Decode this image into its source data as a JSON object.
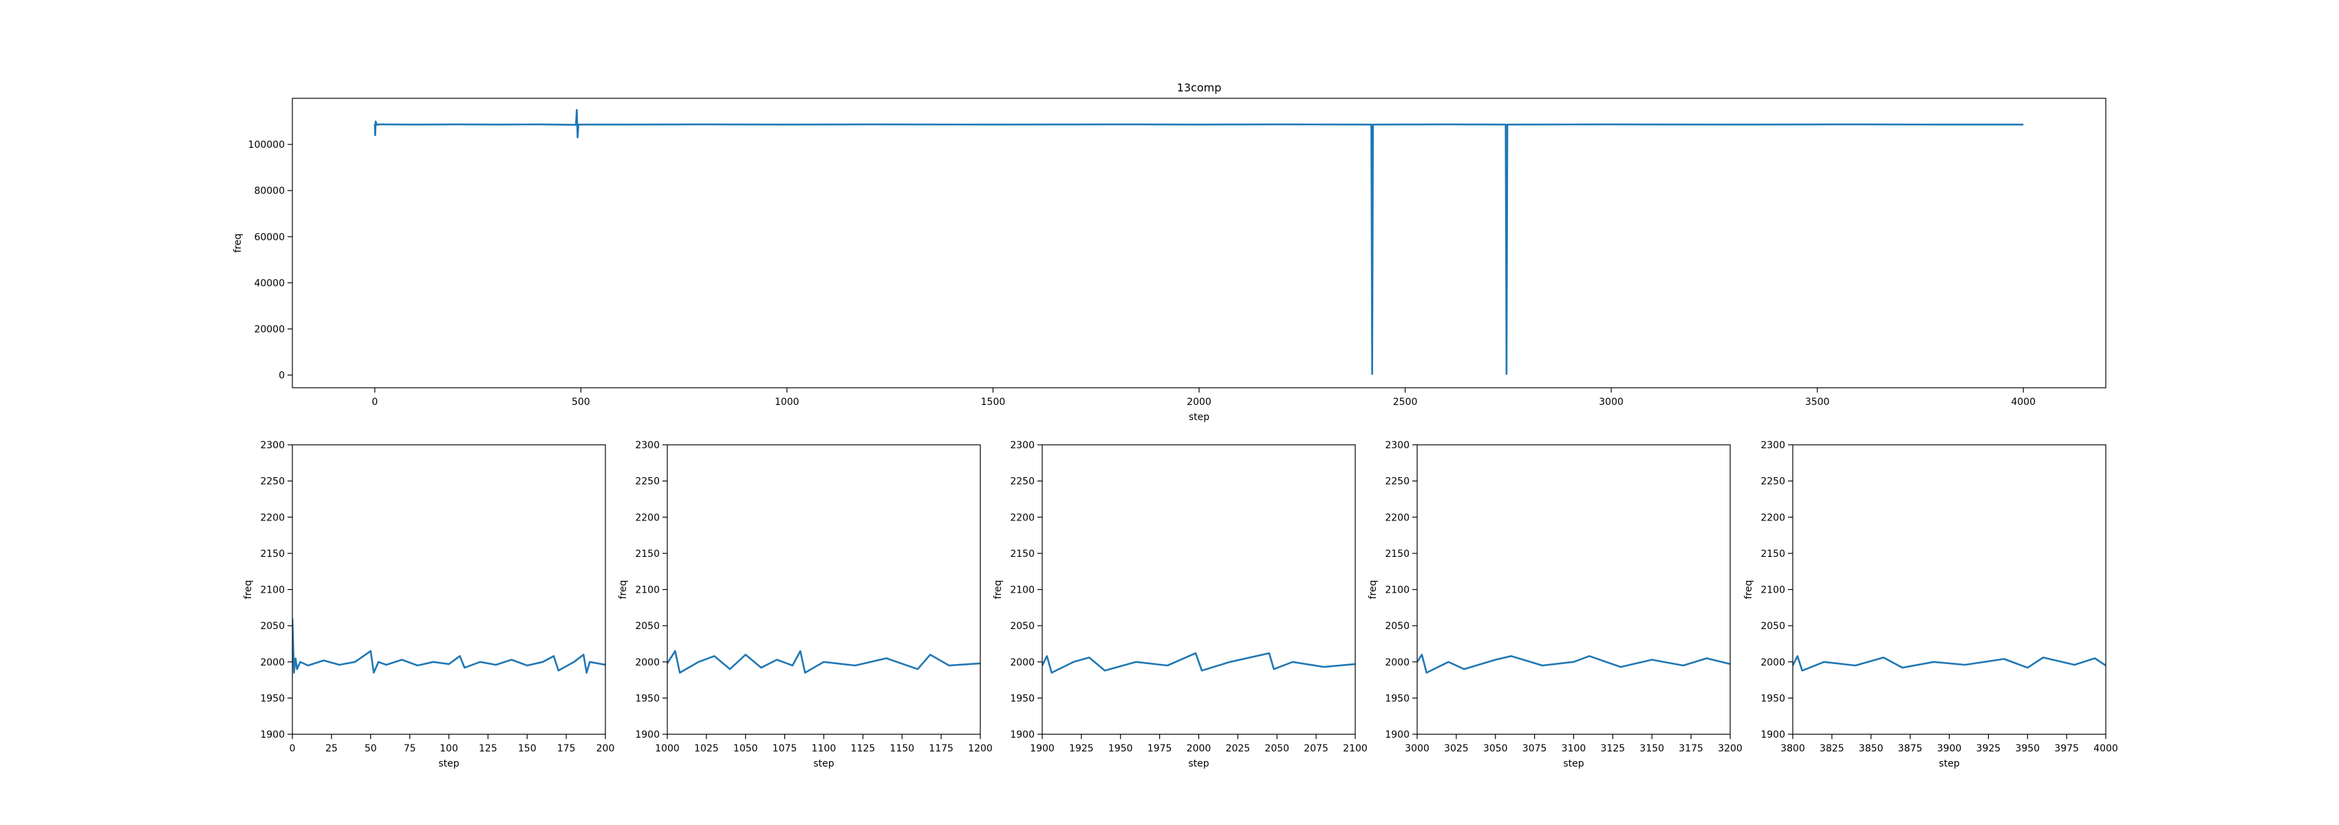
{
  "figure": {
    "title": "13comp"
  },
  "chart_data": [
    {
      "id": "overview",
      "type": "line",
      "title": "13comp",
      "xlabel": "step",
      "ylabel": "freq",
      "xlim": [
        -200,
        4200
      ],
      "ylim": [
        -5500,
        120000
      ],
      "xticks": [
        0,
        500,
        1000,
        1500,
        2000,
        2500,
        3000,
        3500,
        4000
      ],
      "yticks": [
        0,
        20000,
        40000,
        60000,
        80000,
        100000
      ],
      "color": "#1f77b4",
      "series": [
        {
          "points": [
            [
              0,
              109000
            ],
            [
              1,
              104000
            ],
            [
              2,
              110000
            ],
            [
              5,
              108500
            ],
            [
              10,
              108700
            ],
            [
              100,
              108600
            ],
            [
              200,
              108700
            ],
            [
              300,
              108600
            ],
            [
              400,
              108700
            ],
            [
              488,
              108500
            ],
            [
              490,
              115000
            ],
            [
              492,
              103000
            ],
            [
              494,
              108600
            ],
            [
              600,
              108600
            ],
            [
              800,
              108700
            ],
            [
              1000,
              108600
            ],
            [
              1200,
              108700
            ],
            [
              1500,
              108600
            ],
            [
              1800,
              108700
            ],
            [
              2000,
              108600
            ],
            [
              2200,
              108700
            ],
            [
              2418,
              108600
            ],
            [
              2420,
              500
            ],
            [
              2422,
              108600
            ],
            [
              2600,
              108700
            ],
            [
              2744,
              108600
            ],
            [
              2746,
              500
            ],
            [
              2748,
              108600
            ],
            [
              3000,
              108700
            ],
            [
              3300,
              108600
            ],
            [
              3600,
              108700
            ],
            [
              3800,
              108600
            ],
            [
              4000,
              108600
            ]
          ]
        }
      ]
    },
    {
      "id": "zoom-0-200",
      "type": "line",
      "xlabel": "step",
      "ylabel": "freq",
      "xlim": [
        0,
        200
      ],
      "ylim": [
        1900,
        2300
      ],
      "xticks": [
        0,
        25,
        50,
        75,
        100,
        125,
        150,
        175,
        200
      ],
      "yticks": [
        1900,
        1950,
        2000,
        2050,
        2100,
        2150,
        2200,
        2250,
        2300
      ],
      "color": "#1f77b4",
      "series": [
        {
          "points": [
            [
              0,
              2060
            ],
            [
              1,
              1985
            ],
            [
              2,
              2005
            ],
            [
              3,
              1990
            ],
            [
              5,
              2000
            ],
            [
              10,
              1995
            ],
            [
              20,
              2002
            ],
            [
              30,
              1996
            ],
            [
              40,
              2000
            ],
            [
              50,
              2015
            ],
            [
              52,
              1985
            ],
            [
              55,
              2000
            ],
            [
              60,
              1996
            ],
            [
              70,
              2003
            ],
            [
              80,
              1995
            ],
            [
              90,
              2000
            ],
            [
              100,
              1997
            ],
            [
              107,
              2008
            ],
            [
              110,
              1992
            ],
            [
              120,
              2000
            ],
            [
              130,
              1996
            ],
            [
              140,
              2003
            ],
            [
              150,
              1995
            ],
            [
              160,
              2000
            ],
            [
              167,
              2008
            ],
            [
              170,
              1988
            ],
            [
              180,
              2000
            ],
            [
              186,
              2010
            ],
            [
              188,
              1985
            ],
            [
              190,
              2000
            ],
            [
              200,
              1996
            ]
          ]
        }
      ]
    },
    {
      "id": "zoom-1000-1200",
      "type": "line",
      "xlabel": "step",
      "ylabel": "freq",
      "xlim": [
        1000,
        1200
      ],
      "ylim": [
        1900,
        2300
      ],
      "xticks": [
        1000,
        1025,
        1050,
        1075,
        1100,
        1125,
        1150,
        1175,
        1200
      ],
      "yticks": [
        1900,
        1950,
        2000,
        2050,
        2100,
        2150,
        2200,
        2250,
        2300
      ],
      "color": "#1f77b4",
      "series": [
        {
          "points": [
            [
              1000,
              1998
            ],
            [
              1005,
              2015
            ],
            [
              1008,
              1985
            ],
            [
              1020,
              2000
            ],
            [
              1030,
              2008
            ],
            [
              1040,
              1990
            ],
            [
              1050,
              2010
            ],
            [
              1060,
              1992
            ],
            [
              1070,
              2003
            ],
            [
              1080,
              1995
            ],
            [
              1085,
              2015
            ],
            [
              1088,
              1985
            ],
            [
              1100,
              2000
            ],
            [
              1120,
              1995
            ],
            [
              1140,
              2005
            ],
            [
              1160,
              1990
            ],
            [
              1168,
              2010
            ],
            [
              1180,
              1995
            ],
            [
              1200,
              1998
            ]
          ]
        }
      ]
    },
    {
      "id": "zoom-1900-2100",
      "type": "line",
      "xlabel": "step",
      "ylabel": "freq",
      "xlim": [
        1900,
        2100
      ],
      "ylim": [
        1900,
        2300
      ],
      "xticks": [
        1900,
        1925,
        1950,
        1975,
        2000,
        2025,
        2050,
        2075,
        2100
      ],
      "yticks": [
        1900,
        1950,
        2000,
        2050,
        2100,
        2150,
        2200,
        2250,
        2300
      ],
      "color": "#1f77b4",
      "series": [
        {
          "points": [
            [
              1900,
              1995
            ],
            [
              1903,
              2008
            ],
            [
              1906,
              1985
            ],
            [
              1920,
              2000
            ],
            [
              1930,
              2006
            ],
            [
              1940,
              1988
            ],
            [
              1960,
              2000
            ],
            [
              1980,
              1995
            ],
            [
              1998,
              2012
            ],
            [
              2002,
              1988
            ],
            [
              2020,
              2000
            ],
            [
              2045,
              2012
            ],
            [
              2048,
              1990
            ],
            [
              2060,
              2000
            ],
            [
              2080,
              1993
            ],
            [
              2100,
              1997
            ]
          ]
        }
      ]
    },
    {
      "id": "zoom-3000-3200",
      "type": "line",
      "xlabel": "step",
      "ylabel": "freq",
      "xlim": [
        3000,
        3200
      ],
      "ylim": [
        1900,
        2300
      ],
      "xticks": [
        3000,
        3025,
        3050,
        3075,
        3100,
        3125,
        3150,
        3175,
        3200
      ],
      "yticks": [
        1900,
        1950,
        2000,
        2050,
        2100,
        2150,
        2200,
        2250,
        2300
      ],
      "color": "#1f77b4",
      "series": [
        {
          "points": [
            [
              3000,
              2000
            ],
            [
              3003,
              2010
            ],
            [
              3006,
              1985
            ],
            [
              3020,
              2000
            ],
            [
              3030,
              1990
            ],
            [
              3050,
              2003
            ],
            [
              3060,
              2008
            ],
            [
              3080,
              1995
            ],
            [
              3100,
              2000
            ],
            [
              3110,
              2008
            ],
            [
              3130,
              1993
            ],
            [
              3150,
              2003
            ],
            [
              3170,
              1995
            ],
            [
              3185,
              2005
            ],
            [
              3200,
              1997
            ]
          ]
        }
      ]
    },
    {
      "id": "zoom-3800-4000",
      "type": "line",
      "xlabel": "step",
      "ylabel": "freq",
      "xlim": [
        3800,
        4000
      ],
      "ylim": [
        1900,
        2300
      ],
      "xticks": [
        3800,
        3825,
        3850,
        3875,
        3900,
        3925,
        3950,
        3975,
        4000
      ],
      "yticks": [
        1900,
        1950,
        2000,
        2050,
        2100,
        2150,
        2200,
        2250,
        2300
      ],
      "color": "#1f77b4",
      "series": [
        {
          "points": [
            [
              3800,
              1995
            ],
            [
              3803,
              2008
            ],
            [
              3806,
              1988
            ],
            [
              3820,
              2000
            ],
            [
              3840,
              1995
            ],
            [
              3858,
              2006
            ],
            [
              3870,
              1992
            ],
            [
              3890,
              2000
            ],
            [
              3910,
              1996
            ],
            [
              3935,
              2004
            ],
            [
              3950,
              1992
            ],
            [
              3960,
              2006
            ],
            [
              3980,
              1996
            ],
            [
              3993,
              2005
            ],
            [
              4000,
              1995
            ]
          ]
        }
      ]
    }
  ]
}
